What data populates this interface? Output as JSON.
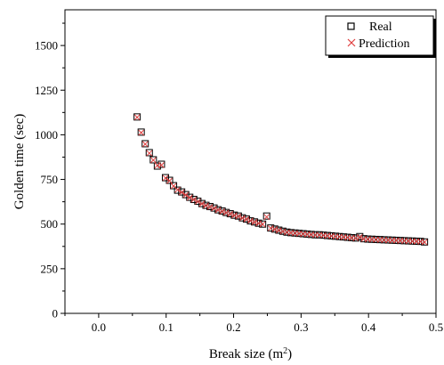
{
  "chart_data": {
    "type": "scatter",
    "xlabel": "Break size (m",
    "xlabel_sup": "2",
    "xlabel_close": ")",
    "ylabel": "Golden time (sec)",
    "xlim": [
      -0.05,
      0.5
    ],
    "ylim": [
      0,
      1700
    ],
    "x_ticks": [
      "0.0",
      "0.1",
      "0.2",
      "0.3",
      "0.4",
      "0.5"
    ],
    "y_ticks": [
      "0",
      "250",
      "500",
      "750",
      "1000",
      "1250",
      "1500"
    ],
    "grid": false,
    "legend_position": "top-right",
    "colors": {
      "real": "#000000",
      "prediction": "#e04040",
      "shadow": "#000000"
    },
    "series": [
      {
        "name": "Real",
        "marker": "square",
        "x": [
          0.057,
          0.063,
          0.069,
          0.075,
          0.081,
          0.087,
          0.093,
          0.099,
          0.105,
          0.111,
          0.117,
          0.123,
          0.129,
          0.135,
          0.141,
          0.147,
          0.153,
          0.159,
          0.165,
          0.171,
          0.177,
          0.183,
          0.189,
          0.195,
          0.201,
          0.207,
          0.213,
          0.219,
          0.225,
          0.231,
          0.237,
          0.243,
          0.249,
          0.255,
          0.261,
          0.267,
          0.273,
          0.279,
          0.285,
          0.291,
          0.297,
          0.303,
          0.309,
          0.315,
          0.321,
          0.327,
          0.333,
          0.339,
          0.345,
          0.351,
          0.357,
          0.363,
          0.369,
          0.375,
          0.381,
          0.387,
          0.393,
          0.399,
          0.405,
          0.411,
          0.417,
          0.423,
          0.429,
          0.435,
          0.441,
          0.447,
          0.453,
          0.459,
          0.465,
          0.471,
          0.477,
          0.483
        ],
        "y": [
          1100,
          1015,
          950,
          900,
          860,
          825,
          835,
          760,
          745,
          715,
          690,
          680,
          665,
          650,
          638,
          628,
          615,
          605,
          598,
          590,
          580,
          573,
          565,
          558,
          550,
          545,
          535,
          528,
          518,
          512,
          505,
          500,
          545,
          478,
          472,
          466,
          460,
          455,
          452,
          450,
          448,
          446,
          444,
          442,
          440,
          440,
          438,
          436,
          434,
          432,
          430,
          428,
          426,
          424,
          422,
          430,
          418,
          416,
          415,
          414,
          413,
          412,
          411,
          410,
          409,
          408,
          407,
          406,
          405,
          404,
          403,
          400
        ]
      },
      {
        "name": "Prediction",
        "marker": "x",
        "x": [
          0.057,
          0.063,
          0.069,
          0.075,
          0.081,
          0.087,
          0.093,
          0.099,
          0.105,
          0.111,
          0.117,
          0.123,
          0.129,
          0.135,
          0.141,
          0.147,
          0.153,
          0.159,
          0.165,
          0.171,
          0.177,
          0.183,
          0.189,
          0.195,
          0.201,
          0.207,
          0.213,
          0.219,
          0.225,
          0.231,
          0.237,
          0.243,
          0.249,
          0.255,
          0.261,
          0.267,
          0.273,
          0.279,
          0.285,
          0.291,
          0.297,
          0.303,
          0.309,
          0.315,
          0.321,
          0.327,
          0.333,
          0.339,
          0.345,
          0.351,
          0.357,
          0.363,
          0.369,
          0.375,
          0.381,
          0.387,
          0.393,
          0.399,
          0.405,
          0.411,
          0.417,
          0.423,
          0.429,
          0.435,
          0.441,
          0.447,
          0.453,
          0.459,
          0.465,
          0.471,
          0.477,
          0.483
        ],
        "y": [
          1098,
          1012,
          948,
          897,
          858,
          828,
          830,
          758,
          742,
          713,
          692,
          678,
          663,
          648,
          637,
          626,
          614,
          604,
          596,
          588,
          579,
          571,
          564,
          557,
          549,
          543,
          534,
          527,
          519,
          511,
          504,
          499,
          540,
          477,
          471,
          465,
          459,
          454,
          451,
          449,
          447,
          445,
          443,
          441,
          439,
          439,
          437,
          435,
          433,
          431,
          429,
          427,
          425,
          423,
          421,
          427,
          417,
          415,
          414,
          413,
          412,
          411,
          410,
          409,
          408,
          407,
          406,
          405,
          404,
          403,
          402,
          399
        ]
      }
    ]
  }
}
